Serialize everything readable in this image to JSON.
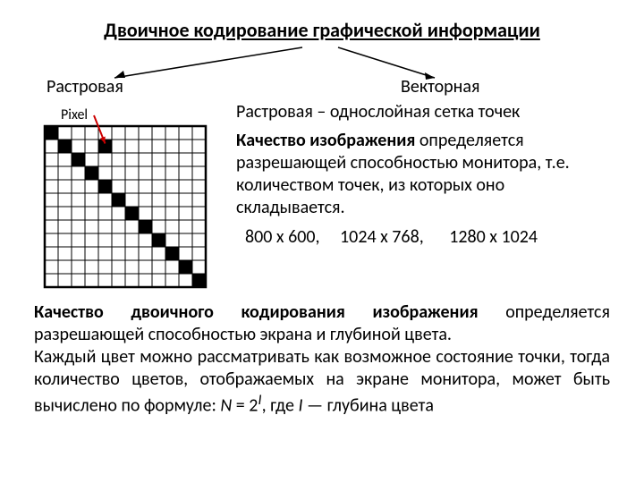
{
  "title": "Двоичное кодирование графической информации",
  "branches": {
    "left": "Растровая",
    "right": "Векторная"
  },
  "subtitle": "Растровая – однослойная сетка точек",
  "quality_para_bold": "Качество изображения",
  "quality_para_rest": " определяется разрешающей способностью монитора, т.е. количеством точек, из которых оно складывается.",
  "resolutions": {
    "r1": "800 х 600,",
    "r2": "1024 х 768,",
    "r3": "1280 х 1024"
  },
  "bottom_bold": "Качество двоичного кодирования изображения",
  "bottom_rest": " определяется разрешающей способностью экрана и глубиной цвета.",
  "bottom_p2a": "Каждый цвет можно рассматривать как возможное состояние точки, тогда количество цветов, отображаемых на экране монитора, может быть вычислено по формуле: ",
  "bottom_formula_N": "N",
  "bottom_formula_eq": " = 2",
  "bottom_formula_I": "I",
  "bottom_p2b": ", где ",
  "bottom_I": "I",
  "bottom_p2c": " — глубина цвета",
  "pixel_label": "Pixel",
  "grid": {
    "cells": 12,
    "cell_size": 15,
    "stroke": "#000000",
    "fill": "#000000",
    "arrow_color": "#cc0000",
    "diagonal": [
      [
        0,
        0
      ],
      [
        1,
        1
      ],
      [
        2,
        2
      ],
      [
        3,
        3
      ],
      [
        4,
        4
      ],
      [
        5,
        5
      ],
      [
        6,
        6
      ],
      [
        7,
        7
      ],
      [
        8,
        8
      ],
      [
        9,
        9
      ],
      [
        10,
        10
      ],
      [
        11,
        11
      ]
    ],
    "arrow_target": [
      4,
      1
    ]
  }
}
